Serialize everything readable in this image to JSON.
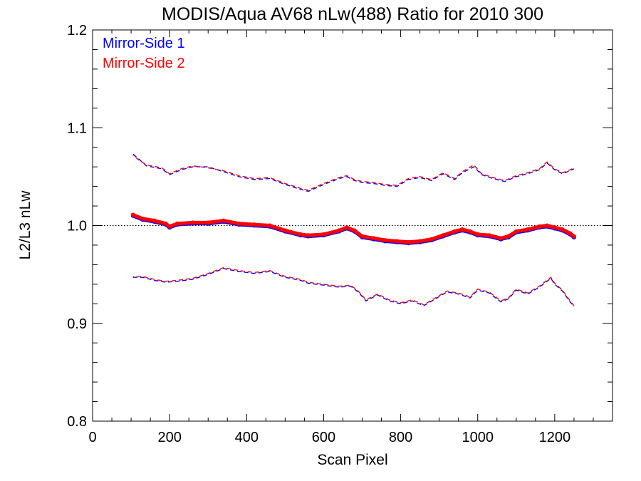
{
  "chart_data": {
    "type": "scatter",
    "title": "MODIS/Aqua AV68 nLw(488) Ratio for 2010 300",
    "xlabel": "Scan Pixel",
    "ylabel": "L2/L3 nLw",
    "xlim": [
      0,
      1350
    ],
    "ylim": [
      0.8,
      1.2
    ],
    "xticks": [
      0,
      200,
      400,
      600,
      800,
      1000,
      1200
    ],
    "xtick_labels": [
      "0",
      "200",
      "400",
      "600",
      "800",
      "1000",
      "1200"
    ],
    "yticks": [
      0.8,
      0.9,
      1.0,
      1.1,
      1.2
    ],
    "ytick_labels": [
      "0.8",
      "0.9",
      "1.0",
      "1.1",
      "1.2"
    ],
    "reference_line": 1.0,
    "grid": false,
    "legend_position": "top-left",
    "series": [
      {
        "name": "Mirror-Side 1",
        "color": "#0000ff",
        "mean": {
          "x": [
            105,
            130,
            160,
            190,
            200,
            220,
            260,
            300,
            340,
            380,
            420,
            460,
            500,
            540,
            560,
            600,
            640,
            660,
            680,
            700,
            730,
            760,
            790,
            820,
            850,
            880,
            910,
            940,
            960,
            980,
            1000,
            1030,
            1060,
            1080,
            1100,
            1130,
            1160,
            1180,
            1200,
            1220,
            1240,
            1250
          ],
          "y": [
            1.01,
            1.006,
            1.004,
            1.001,
            0.998,
            1.001,
            1.002,
            1.002,
            1.004,
            1.001,
            1.0,
            0.999,
            0.994,
            0.99,
            0.989,
            0.99,
            0.994,
            0.997,
            0.994,
            0.988,
            0.986,
            0.984,
            0.983,
            0.982,
            0.983,
            0.985,
            0.989,
            0.993,
            0.995,
            0.993,
            0.99,
            0.989,
            0.986,
            0.988,
            0.993,
            0.995,
            0.998,
            0.999,
            0.997,
            0.995,
            0.991,
            0.988
          ]
        },
        "upper": {
          "x": [
            105,
            120,
            140,
            180,
            200,
            230,
            260,
            300,
            340,
            380,
            420,
            460,
            500,
            540,
            560,
            600,
            640,
            660,
            680,
            700,
            730,
            760,
            790,
            820,
            850,
            880,
            910,
            940,
            960,
            990,
            1010,
            1040,
            1070,
            1100,
            1130,
            1160,
            1180,
            1200,
            1220,
            1240,
            1250
          ],
          "y": [
            1.073,
            1.068,
            1.061,
            1.058,
            1.052,
            1.057,
            1.06,
            1.06,
            1.055,
            1.05,
            1.047,
            1.048,
            1.042,
            1.037,
            1.035,
            1.042,
            1.048,
            1.05,
            1.046,
            1.044,
            1.043,
            1.041,
            1.04,
            1.047,
            1.049,
            1.046,
            1.053,
            1.047,
            1.054,
            1.06,
            1.052,
            1.048,
            1.045,
            1.05,
            1.053,
            1.057,
            1.064,
            1.057,
            1.053,
            1.056,
            1.058
          ]
        },
        "lower": {
          "x": [
            105,
            130,
            160,
            190,
            220,
            260,
            300,
            340,
            380,
            420,
            460,
            500,
            540,
            560,
            600,
            640,
            670,
            690,
            710,
            740,
            770,
            800,
            830,
            860,
            890,
            920,
            950,
            980,
            1000,
            1030,
            1060,
            1080,
            1100,
            1130,
            1160,
            1190,
            1200,
            1220,
            1240,
            1250
          ],
          "y": [
            0.947,
            0.947,
            0.944,
            0.942,
            0.943,
            0.945,
            0.95,
            0.956,
            0.953,
            0.951,
            0.953,
            0.947,
            0.944,
            0.941,
            0.939,
            0.937,
            0.938,
            0.932,
            0.923,
            0.929,
            0.923,
            0.92,
            0.923,
            0.918,
            0.925,
            0.932,
            0.93,
            0.926,
            0.934,
            0.931,
            0.922,
            0.925,
            0.934,
            0.93,
            0.937,
            0.946,
            0.94,
            0.933,
            0.922,
            0.917
          ]
        }
      },
      {
        "name": "Mirror-Side 2",
        "color": "#ff0000",
        "mean": {
          "x": [
            105,
            130,
            160,
            190,
            200,
            220,
            260,
            300,
            340,
            380,
            420,
            460,
            500,
            540,
            560,
            600,
            640,
            660,
            680,
            700,
            730,
            760,
            790,
            820,
            850,
            880,
            910,
            940,
            960,
            980,
            1000,
            1030,
            1060,
            1080,
            1100,
            1130,
            1160,
            1180,
            1200,
            1220,
            1240,
            1250
          ],
          "y": [
            1.011,
            1.007,
            1.005,
            1.002,
            0.999,
            1.002,
            1.003,
            1.003,
            1.005,
            1.002,
            1.001,
            1.0,
            0.995,
            0.991,
            0.99,
            0.991,
            0.995,
            0.998,
            0.995,
            0.989,
            0.987,
            0.985,
            0.984,
            0.983,
            0.984,
            0.986,
            0.99,
            0.994,
            0.996,
            0.994,
            0.991,
            0.99,
            0.987,
            0.989,
            0.994,
            0.996,
            0.999,
            1.0,
            0.998,
            0.996,
            0.992,
            0.989
          ]
        },
        "upper": {
          "x": [
            105,
            120,
            140,
            180,
            200,
            230,
            260,
            300,
            340,
            380,
            420,
            460,
            500,
            540,
            560,
            600,
            640,
            660,
            680,
            700,
            730,
            760,
            790,
            820,
            850,
            880,
            910,
            940,
            960,
            990,
            1010,
            1040,
            1070,
            1100,
            1130,
            1160,
            1180,
            1200,
            1220,
            1240,
            1250
          ],
          "y": [
            1.072,
            1.067,
            1.062,
            1.059,
            1.053,
            1.058,
            1.061,
            1.059,
            1.056,
            1.051,
            1.048,
            1.049,
            1.043,
            1.038,
            1.036,
            1.043,
            1.049,
            1.051,
            1.047,
            1.045,
            1.044,
            1.042,
            1.041,
            1.048,
            1.05,
            1.047,
            1.054,
            1.048,
            1.055,
            1.062,
            1.053,
            1.049,
            1.046,
            1.051,
            1.054,
            1.058,
            1.065,
            1.058,
            1.054,
            1.057,
            1.059
          ]
        },
        "lower": {
          "x": [
            105,
            130,
            160,
            190,
            220,
            260,
            300,
            340,
            380,
            420,
            460,
            500,
            540,
            560,
            600,
            640,
            670,
            690,
            710,
            740,
            770,
            800,
            830,
            860,
            890,
            920,
            950,
            980,
            1000,
            1030,
            1060,
            1080,
            1100,
            1130,
            1160,
            1190,
            1200,
            1220,
            1240,
            1250
          ],
          "y": [
            0.948,
            0.948,
            0.945,
            0.943,
            0.944,
            0.946,
            0.951,
            0.957,
            0.954,
            0.952,
            0.954,
            0.948,
            0.945,
            0.942,
            0.94,
            0.938,
            0.939,
            0.933,
            0.924,
            0.93,
            0.924,
            0.921,
            0.924,
            0.919,
            0.926,
            0.933,
            0.931,
            0.927,
            0.935,
            0.932,
            0.923,
            0.926,
            0.935,
            0.931,
            0.938,
            0.947,
            0.941,
            0.934,
            0.923,
            0.918
          ]
        }
      }
    ]
  }
}
